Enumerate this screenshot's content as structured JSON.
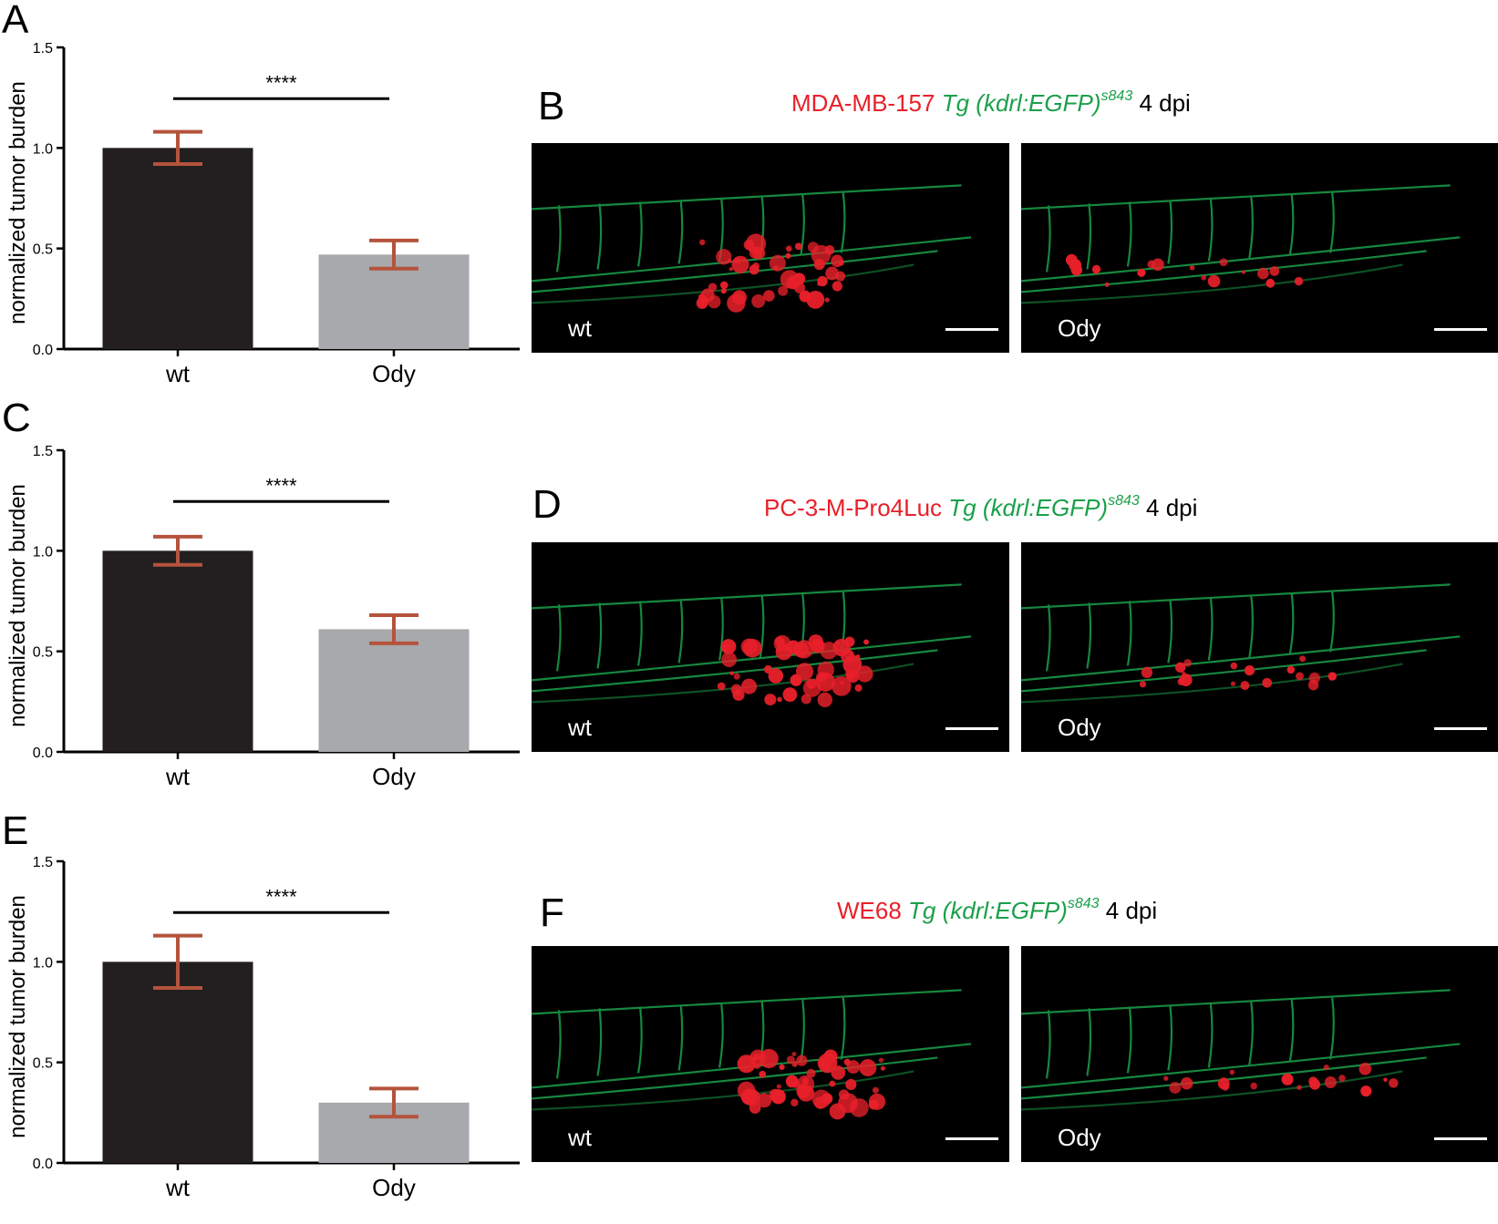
{
  "panels_letters": {
    "a": "A",
    "b": "B",
    "c": "C",
    "d": "D",
    "e": "E",
    "f": "F"
  },
  "chart_data": [
    {
      "type": "bar",
      "panel": "A",
      "categories": [
        "wt",
        "Ody"
      ],
      "values": [
        1.0,
        0.47
      ],
      "errors": [
        0.08,
        0.07
      ],
      "bar_colors": [
        "#231f20",
        "#a7a9ac"
      ],
      "error_color": "#b5533c",
      "ylabel": "normalized tumor burden",
      "ylim": [
        0,
        1.5
      ],
      "yticks": [
        "0.0",
        "0.5",
        "1.0",
        "1.5"
      ],
      "significance": "****"
    },
    {
      "type": "bar",
      "panel": "C",
      "categories": [
        "wt",
        "Ody"
      ],
      "values": [
        1.0,
        0.61
      ],
      "errors": [
        0.07,
        0.07
      ],
      "bar_colors": [
        "#231f20",
        "#a7a9ac"
      ],
      "error_color": "#b5533c",
      "ylabel": "normalized tumor burden",
      "ylim": [
        0,
        1.5
      ],
      "yticks": [
        "0.0",
        "0.5",
        "1.0",
        "1.5"
      ],
      "significance": "****"
    },
    {
      "type": "bar",
      "panel": "E",
      "categories": [
        "wt",
        "Ody"
      ],
      "values": [
        1.0,
        0.3
      ],
      "errors": [
        0.13,
        0.07
      ],
      "bar_colors": [
        "#231f20",
        "#a7a9ac"
      ],
      "error_color": "#b5533c",
      "ylabel": "normalized tumor burden",
      "ylim": [
        0,
        1.5
      ],
      "yticks": [
        "0.0",
        "0.5",
        "1.0",
        "1.5"
      ],
      "significance": "****"
    }
  ],
  "micrographs": [
    {
      "panel": "B",
      "title_cell": "MDA-MB-157",
      "title_transgene": "Tg (kdrl:EGFP)",
      "title_superscript": "s843",
      "title_time": "4 dpi",
      "images": [
        {
          "label": "wt"
        },
        {
          "label": "Ody"
        }
      ]
    },
    {
      "panel": "D",
      "title_cell": "PC-3-M-Pro4Luc",
      "title_transgene": "Tg (kdrl:EGFP)",
      "title_superscript": "s843",
      "title_time": "4 dpi",
      "images": [
        {
          "label": "wt"
        },
        {
          "label": "Ody"
        }
      ]
    },
    {
      "panel": "F",
      "title_cell": "WE68",
      "title_transgene": "Tg (kdrl:EGFP)",
      "title_superscript": "s843",
      "title_time": "4 dpi",
      "images": [
        {
          "label": "wt"
        },
        {
          "label": "Ody"
        }
      ]
    }
  ],
  "colors": {
    "tumor_cells": "#e8202a",
    "vessels": "#1aa04a",
    "background": "#000000"
  }
}
